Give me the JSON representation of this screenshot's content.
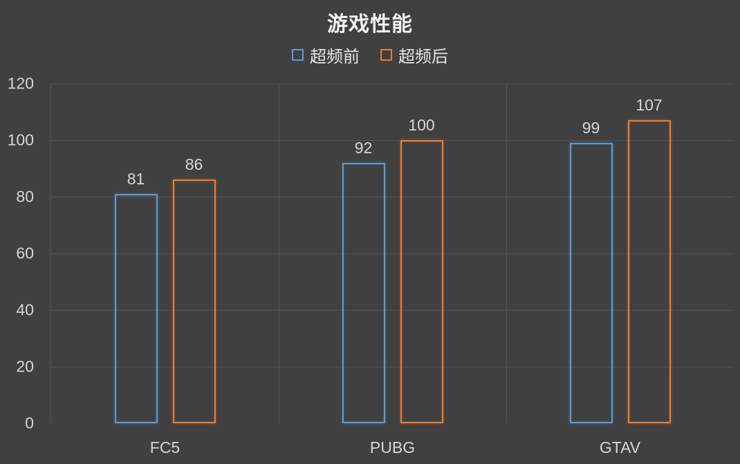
{
  "chart_data": {
    "type": "bar",
    "title": "游戏性能",
    "categories": [
      "FC5",
      "PUBG",
      "GTAV"
    ],
    "series": [
      {
        "name": "超频前",
        "color": "#5B9BD5",
        "values": [
          81,
          92,
          99
        ]
      },
      {
        "name": "超频后",
        "color": "#ED7D31",
        "values": [
          86,
          100,
          107
        ]
      }
    ],
    "ylim": [
      0,
      120
    ],
    "y_ticks": [
      0,
      20,
      40,
      60,
      80,
      100,
      120
    ],
    "xlabel": "",
    "ylabel": "",
    "grid": true,
    "legend_position": "top",
    "bar_fill": "none",
    "data_labels_shown": true
  },
  "colors": {
    "background": "#404040",
    "gridline": "#545454",
    "axis_line": "#585858",
    "tick_label": "#D6D6D6",
    "data_label": "#D6D6D6",
    "category_label": "#D6D6D6",
    "title_text": "#F2F2F2",
    "legend_text": "#E6E6E6"
  }
}
